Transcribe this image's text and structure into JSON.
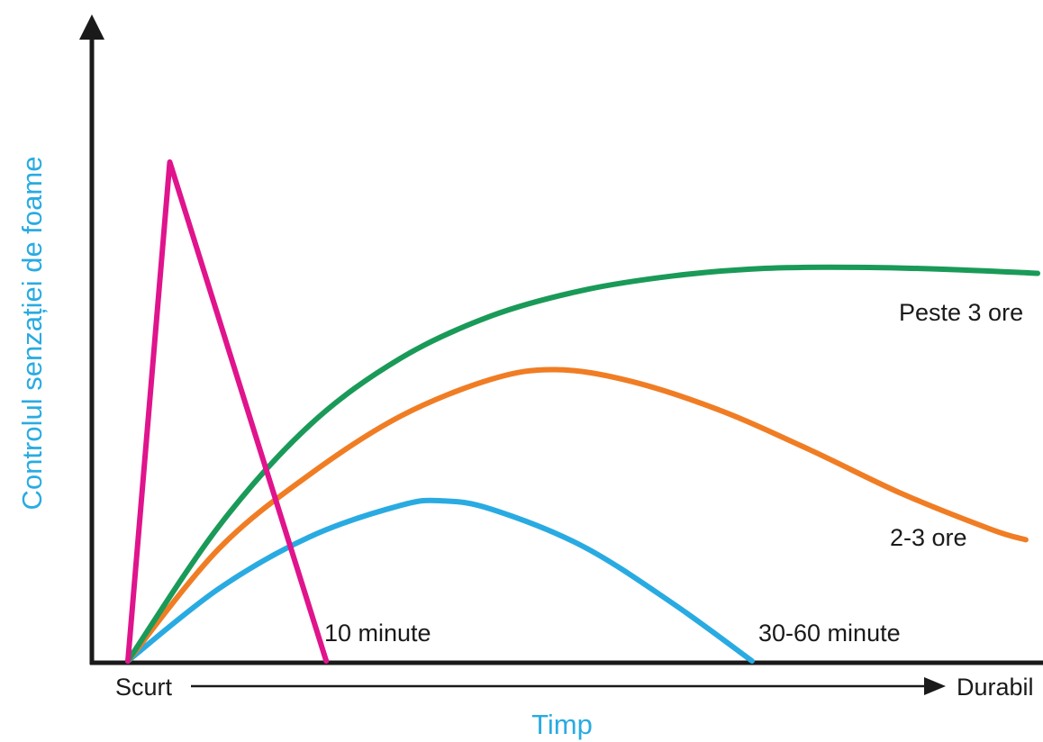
{
  "chart_data": {
    "type": "line",
    "title": "",
    "xlabel": "Timp",
    "ylabel": "Controlul senzației de foame",
    "x_start_label": "Scurt",
    "x_end_label": "Durabil",
    "xlim": [
      0,
      100
    ],
    "ylim": [
      0,
      100
    ],
    "grid": false,
    "legend": "none",
    "series": [
      {
        "name": "10 minute",
        "color": "#e0148c",
        "x": [
          0,
          4.6,
          21.8
        ],
        "y": [
          0,
          100,
          0
        ]
      },
      {
        "name": "30-60 minute",
        "color": "#29abe2",
        "x": [
          0,
          10,
          20,
          30,
          34.6,
          40,
          50,
          60,
          68.6
        ],
        "y": [
          0,
          14.5,
          24.9,
          31.2,
          32.1,
          30.4,
          23.0,
          11.4,
          0
        ]
      },
      {
        "name": "2-3 ore",
        "color": "#f07d24",
        "x": [
          0,
          10,
          20,
          30,
          40,
          47,
          55,
          65,
          75,
          85,
          95,
          98.7
        ],
        "y": [
          0,
          22.5,
          37.4,
          49.1,
          56.5,
          58.4,
          56.2,
          50.3,
          42.3,
          33.6,
          26.3,
          24.3
        ]
      },
      {
        "name": "Peste 3 ore",
        "color": "#1a9a58",
        "x": [
          0,
          10,
          20,
          30,
          40,
          50,
          60,
          70,
          80,
          90,
          100
        ],
        "y": [
          0,
          27.0,
          47.3,
          60.7,
          69.2,
          74.3,
          77.2,
          78.7,
          78.9,
          78.5,
          77.7
        ]
      }
    ],
    "annotations": [
      "10 minute",
      "30-60 minute",
      "2-3 ore",
      "Peste 3 ore"
    ]
  },
  "colors": {
    "axis": "#1a1a1a",
    "axis_title": "#29abe2",
    "text": "#1a1a1a"
  }
}
